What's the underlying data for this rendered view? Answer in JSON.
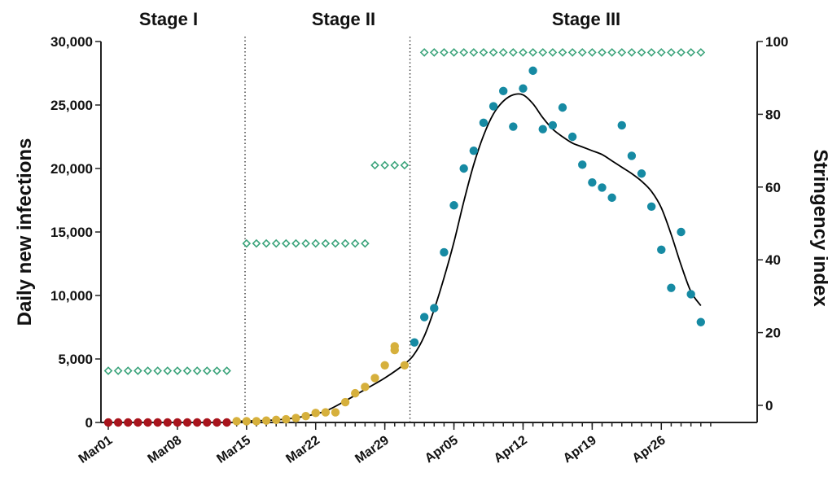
{
  "chart_data": {
    "type": "scatter",
    "title": "",
    "stages": [
      "Stage I",
      "Stage II",
      "Stage III"
    ],
    "stage_boundaries": [
      14,
      32
    ],
    "xlabel": "",
    "ylabel": "Daily new infections",
    "y2label": "Stringency index",
    "ylim": [
      0,
      30000
    ],
    "y2lim": [
      -5,
      100
    ],
    "x_range": [
      -0.3,
      61.6
    ],
    "yticks": [
      0,
      5000,
      10000,
      15000,
      20000,
      25000,
      30000
    ],
    "ytick_labels": [
      "0",
      "5,000",
      "10,000",
      "15,000",
      "20,000",
      "25,000",
      "30,000"
    ],
    "y2ticks": [
      0,
      20,
      40,
      60,
      80,
      100
    ],
    "y2tick_labels": [
      "0",
      "20",
      "40",
      "60",
      "80",
      "100"
    ],
    "xticks": [
      0,
      7,
      14,
      21,
      28,
      35,
      42,
      49,
      56
    ],
    "xtick_labels": [
      "Mar01",
      "Mar08",
      "Mar15",
      "Mar22",
      "Mar29",
      "Apr05",
      "Apr12",
      "Apr19",
      "Apr26"
    ],
    "colors": {
      "stage1": "#a8141c",
      "stage2": "#d6b03c",
      "stage3": "#168aa3",
      "stringency": "#3aa37a",
      "trend": "#000000"
    },
    "infections": {
      "stage1": {
        "x": [
          0,
          1,
          2,
          3,
          4,
          5,
          6,
          7,
          8,
          9,
          10,
          11,
          12
        ],
        "y": [
          0,
          0,
          0,
          0,
          0,
          0,
          0,
          0,
          0,
          0,
          0,
          0,
          0
        ]
      },
      "stage2": {
        "x": [
          13,
          14,
          15,
          16,
          17,
          18,
          19,
          20,
          21,
          22,
          23,
          24,
          25,
          26,
          27,
          28,
          29,
          30
        ],
        "y": [
          100,
          100,
          100,
          150,
          200,
          250,
          350,
          500,
          750,
          800,
          800,
          1600,
          2300,
          2800,
          3500,
          4500,
          6000,
          4500
        ]
      },
      "stage2b": {
        "x": [
          29
        ],
        "y": [
          5700
        ]
      },
      "stage3": {
        "x": [
          31,
          32,
          33,
          34,
          35,
          36,
          37,
          38,
          39,
          40,
          41,
          42,
          43,
          44,
          45,
          46,
          47,
          48,
          49,
          50,
          51,
          52,
          53,
          54,
          55,
          56,
          57,
          58,
          59,
          60
        ],
        "y": [
          6300,
          8300,
          9000,
          13400,
          17100,
          20000,
          21400,
          23600,
          24900,
          26100,
          23300,
          26300,
          27700,
          23100,
          23400,
          24800,
          22500,
          20300,
          18900,
          18500,
          17700,
          23400,
          21000,
          19600,
          17000,
          13600,
          10600,
          15000,
          10100,
          7900
        ]
      }
    },
    "trend_line": {
      "x": [
        13,
        17,
        20,
        22,
        24,
        26,
        28,
        30,
        31,
        32,
        33,
        34,
        35,
        36,
        37,
        38,
        39,
        40,
        41,
        42,
        43,
        44,
        45,
        46,
        47,
        48,
        49,
        50,
        51,
        52,
        53,
        54,
        55,
        56,
        57,
        58,
        59,
        60
      ],
      "y": [
        100,
        200,
        500,
        900,
        1700,
        2600,
        3500,
        4600,
        5400,
        6800,
        8900,
        11400,
        14200,
        17400,
        20300,
        22600,
        24300,
        25300,
        25800,
        25800,
        25100,
        24000,
        23100,
        22500,
        22000,
        21700,
        21400,
        21100,
        20600,
        20100,
        19600,
        19000,
        18200,
        16900,
        14800,
        12400,
        10300,
        9200
      ]
    },
    "stringency": {
      "x": [
        0,
        1,
        2,
        3,
        4,
        5,
        6,
        7,
        8,
        9,
        10,
        11,
        12,
        14,
        15,
        16,
        17,
        18,
        19,
        20,
        21,
        22,
        23,
        24,
        25,
        26,
        27,
        28,
        29,
        30,
        32,
        33,
        34,
        35,
        36,
        37,
        38,
        39,
        40,
        41,
        42,
        43,
        44,
        45,
        46,
        47,
        48,
        49,
        50,
        51,
        52,
        53,
        54,
        55,
        56,
        57,
        58,
        59,
        60
      ],
      "y": [
        9.5,
        9.5,
        9.5,
        9.5,
        9.5,
        9.5,
        9.5,
        9.5,
        9.5,
        9.5,
        9.5,
        9.5,
        9.5,
        44.5,
        44.5,
        44.5,
        44.5,
        44.5,
        44.5,
        44.5,
        44.5,
        44.5,
        44.5,
        44.5,
        44.5,
        44.5,
        66,
        66,
        66,
        66,
        97,
        97,
        97,
        97,
        97,
        97,
        97,
        97,
        97,
        97,
        97,
        97,
        97,
        97,
        97,
        97,
        97,
        97,
        97,
        97,
        97,
        97,
        97,
        97,
        97,
        97,
        97,
        97,
        97
      ]
    }
  }
}
